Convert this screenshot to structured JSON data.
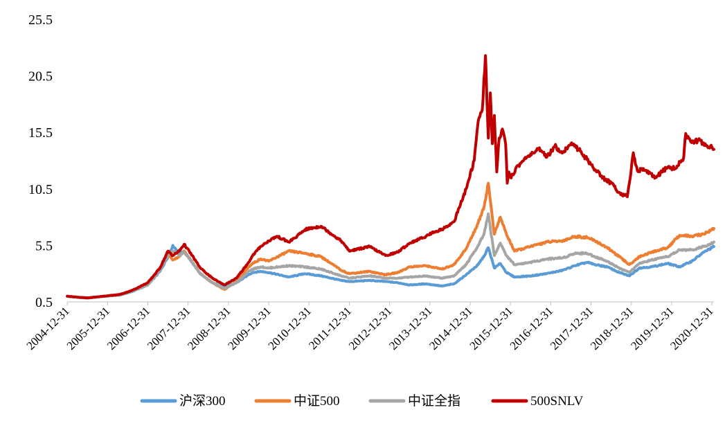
{
  "chart_data": {
    "type": "line",
    "title": "",
    "xlabel": "",
    "ylabel": "",
    "ylim": [
      0.5,
      25.5
    ],
    "yticks": [
      "0.5",
      "5.5",
      "10.5",
      "15.5",
      "20.5",
      "25.5"
    ],
    "ytick_values": [
      0.5,
      5.5,
      10.5,
      15.5,
      20.5,
      25.5
    ],
    "xlim": [
      2004.997,
      2021.05
    ],
    "xticks": [
      "2004-12-31",
      "2005-12-31",
      "2006-12-31",
      "2007-12-31",
      "2008-12-31",
      "2009-12-31",
      "2010-12-31",
      "2011-12-31",
      "2012-12-31",
      "2013-12-31",
      "2014-12-31",
      "2015-12-31",
      "2016-12-31",
      "2017-12-31",
      "2018-12-31",
      "2019-12-31",
      "2020-12-31"
    ],
    "xtick_values": [
      2005.0,
      2006.0,
      2007.0,
      2008.0,
      2009.0,
      2010.0,
      2011.0,
      2012.0,
      2013.0,
      2014.0,
      2015.0,
      2016.0,
      2017.0,
      2018.0,
      2019.0,
      2020.0,
      2021.0
    ],
    "grid": false,
    "legend_position": "bottom",
    "series": [
      {
        "name": "沪深300",
        "color": "#5B9BD5",
        "x": [
          2005.0,
          2005.3,
          2005.5,
          2005.9,
          2006.3,
          2006.6,
          2007.0,
          2007.3,
          2007.5,
          2007.62,
          2007.78,
          2007.9,
          2008.1,
          2008.3,
          2008.6,
          2008.9,
          2009.2,
          2009.5,
          2009.6,
          2009.8,
          2010.0,
          2010.5,
          2010.9,
          2011.3,
          2011.8,
          2012.0,
          2012.5,
          2012.9,
          2013.2,
          2013.5,
          2013.9,
          2014.3,
          2014.6,
          2014.9,
          2015.2,
          2015.35,
          2015.45,
          2015.6,
          2015.75,
          2015.9,
          2016.1,
          2016.5,
          2016.9,
          2017.3,
          2017.6,
          2017.9,
          2018.1,
          2018.4,
          2018.7,
          2018.95,
          2019.2,
          2019.5,
          2019.9,
          2020.2,
          2020.5,
          2020.8,
          2021.05
        ],
        "values": [
          1.0,
          0.9,
          0.85,
          1.0,
          1.1,
          1.4,
          2.0,
          3.2,
          4.5,
          5.5,
          4.8,
          5.0,
          4.0,
          3.0,
          2.2,
          1.8,
          2.2,
          2.9,
          3.1,
          3.2,
          3.1,
          2.7,
          3.0,
          2.8,
          2.4,
          2.3,
          2.4,
          2.3,
          2.2,
          2.0,
          2.1,
          1.9,
          2.1,
          2.9,
          3.8,
          4.6,
          5.3,
          3.5,
          3.9,
          3.1,
          2.7,
          2.8,
          3.0,
          3.3,
          3.7,
          4.0,
          3.8,
          3.6,
          3.1,
          2.8,
          3.5,
          3.6,
          3.9,
          3.6,
          4.1,
          4.9,
          5.4
        ]
      },
      {
        "name": "中证500",
        "color": "#ED7D31",
        "x": [
          2005.0,
          2005.3,
          2005.5,
          2005.9,
          2006.3,
          2006.6,
          2007.0,
          2007.3,
          2007.5,
          2007.62,
          2007.78,
          2007.9,
          2008.1,
          2008.3,
          2008.6,
          2008.9,
          2009.2,
          2009.5,
          2009.6,
          2009.8,
          2010.0,
          2010.5,
          2010.9,
          2011.3,
          2011.8,
          2012.0,
          2012.5,
          2012.9,
          2013.2,
          2013.5,
          2013.9,
          2014.3,
          2014.6,
          2014.9,
          2015.2,
          2015.35,
          2015.45,
          2015.6,
          2015.75,
          2015.9,
          2016.1,
          2016.5,
          2016.9,
          2017.3,
          2017.6,
          2017.9,
          2018.1,
          2018.4,
          2018.7,
          2018.95,
          2019.2,
          2019.5,
          2019.9,
          2020.2,
          2020.5,
          2020.8,
          2021.05
        ],
        "values": [
          1.0,
          0.9,
          0.85,
          1.0,
          1.15,
          1.5,
          2.1,
          3.5,
          4.8,
          4.2,
          4.5,
          5.0,
          4.0,
          3.0,
          2.2,
          1.6,
          2.3,
          3.6,
          3.9,
          4.3,
          4.1,
          5.0,
          4.8,
          4.5,
          3.3,
          3.0,
          3.2,
          2.9,
          3.1,
          3.6,
          3.7,
          3.4,
          3.8,
          5.2,
          7.5,
          9.0,
          11.0,
          6.5,
          8.0,
          6.5,
          5.0,
          5.4,
          5.8,
          5.9,
          6.3,
          6.2,
          5.9,
          5.3,
          4.5,
          3.8,
          4.5,
          4.9,
          5.3,
          6.4,
          6.3,
          6.5,
          7.0
        ]
      },
      {
        "name": "中证全指",
        "color": "#A5A5A5",
        "x": [
          2005.0,
          2005.3,
          2005.5,
          2005.9,
          2006.3,
          2006.6,
          2007.0,
          2007.3,
          2007.5,
          2007.62,
          2007.78,
          2007.9,
          2008.1,
          2008.3,
          2008.6,
          2008.9,
          2009.2,
          2009.5,
          2009.6,
          2009.8,
          2010.0,
          2010.5,
          2010.9,
          2011.3,
          2011.8,
          2012.0,
          2012.5,
          2012.9,
          2013.2,
          2013.5,
          2013.9,
          2014.3,
          2014.6,
          2014.9,
          2015.2,
          2015.35,
          2015.45,
          2015.6,
          2015.75,
          2015.9,
          2016.1,
          2016.5,
          2016.9,
          2017.3,
          2017.6,
          2017.9,
          2018.1,
          2018.4,
          2018.7,
          2018.95,
          2019.2,
          2019.5,
          2019.9,
          2020.2,
          2020.5,
          2020.8,
          2021.05
        ],
        "values": [
          1.0,
          0.9,
          0.85,
          1.0,
          1.1,
          1.45,
          2.0,
          3.3,
          4.6,
          5.0,
          4.6,
          4.9,
          4.0,
          3.0,
          2.2,
          1.7,
          2.2,
          3.2,
          3.4,
          3.6,
          3.5,
          3.7,
          3.6,
          3.4,
          2.8,
          2.6,
          2.8,
          2.6,
          2.6,
          2.7,
          2.8,
          2.6,
          2.8,
          3.8,
          5.5,
          6.6,
          8.3,
          4.6,
          5.7,
          4.6,
          3.8,
          4.0,
          4.3,
          4.4,
          4.8,
          4.8,
          4.5,
          4.1,
          3.5,
          3.1,
          3.9,
          4.2,
          4.5,
          5.1,
          5.1,
          5.4,
          5.8
        ]
      },
      {
        "name": "500SNLV",
        "color": "#C00000",
        "x": [
          2005.0,
          2005.3,
          2005.5,
          2005.9,
          2006.3,
          2006.6,
          2007.0,
          2007.3,
          2007.5,
          2007.62,
          2007.78,
          2007.9,
          2008.1,
          2008.3,
          2008.6,
          2008.9,
          2009.2,
          2009.5,
          2009.6,
          2009.8,
          2010.0,
          2010.2,
          2010.5,
          2010.7,
          2010.9,
          2011.3,
          2011.6,
          2011.8,
          2012.0,
          2012.5,
          2012.9,
          2013.2,
          2013.5,
          2013.9,
          2014.1,
          2014.3,
          2014.6,
          2014.9,
          2015.1,
          2015.2,
          2015.3,
          2015.38,
          2015.45,
          2015.5,
          2015.55,
          2015.6,
          2015.66,
          2015.72,
          2015.8,
          2015.88,
          2015.92,
          2015.96,
          2016.0,
          2016.2,
          2016.5,
          2016.7,
          2016.9,
          2017.1,
          2017.3,
          2017.5,
          2017.7,
          2017.9,
          2018.1,
          2018.3,
          2018.5,
          2018.7,
          2018.9,
          2018.95,
          2019.05,
          2019.15,
          2019.3,
          2019.6,
          2019.9,
          2020.1,
          2020.3,
          2020.35,
          2020.5,
          2020.7,
          2020.85,
          2021.0,
          2021.05
        ],
        "values": [
          1.0,
          0.9,
          0.85,
          1.0,
          1.15,
          1.5,
          2.2,
          3.5,
          5.0,
          4.6,
          5.0,
          5.6,
          4.6,
          3.5,
          2.6,
          2.0,
          2.6,
          4.0,
          4.6,
          5.4,
          5.9,
          6.3,
          5.8,
          6.3,
          6.9,
          7.2,
          6.4,
          5.9,
          5.0,
          5.4,
          4.6,
          4.9,
          5.7,
          6.3,
          6.7,
          6.9,
          7.6,
          10.5,
          13.0,
          16.5,
          17.5,
          22.3,
          15.0,
          19.0,
          14.5,
          17.0,
          12.0,
          15.0,
          15.8,
          14.5,
          11.0,
          12.0,
          11.5,
          12.6,
          13.6,
          14.0,
          13.3,
          14.3,
          13.7,
          14.5,
          14.0,
          13.1,
          12.2,
          11.5,
          11.0,
          10.2,
          9.8,
          11.0,
          13.7,
          12.1,
          12.3,
          11.5,
          12.4,
          12.3,
          13.3,
          15.4,
          14.6,
          14.8,
          14.4,
          14.2,
          14.0
        ]
      }
    ]
  }
}
